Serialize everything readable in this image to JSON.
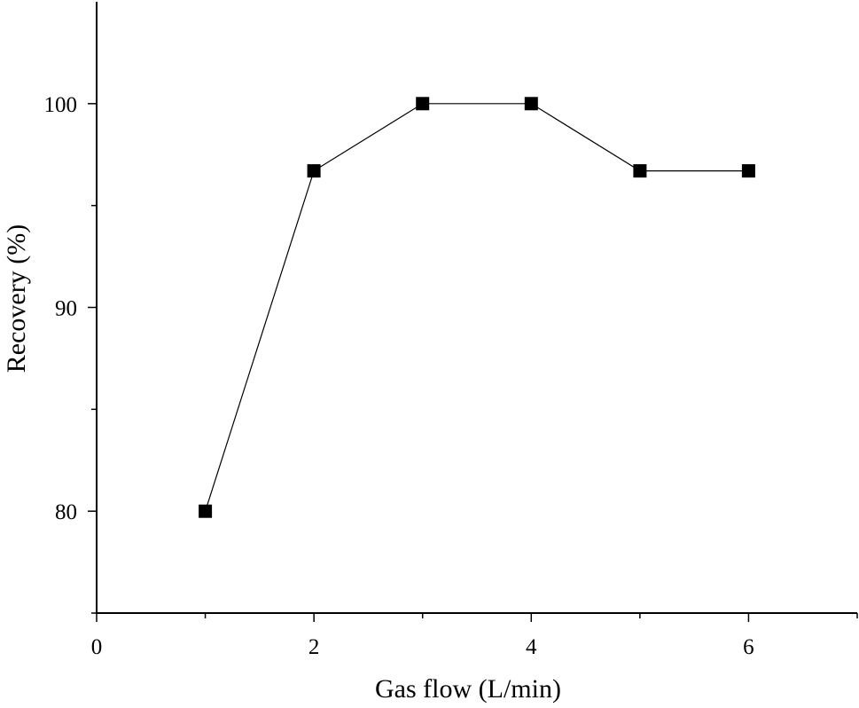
{
  "chart_data": {
    "type": "line",
    "title": "",
    "xlabel": "Gas flow (L/min)",
    "ylabel": "Recovery (%)",
    "xlim": [
      0,
      7
    ],
    "ylim": [
      75,
      105
    ],
    "xticks": [
      0,
      2,
      4,
      6
    ],
    "yticks": [
      80,
      90,
      100
    ],
    "x_minor_ticks": [
      1,
      3,
      5,
      7
    ],
    "y_minor_ticks": [
      75,
      85,
      95
    ],
    "grid": false,
    "marker": "square",
    "color": "#000000",
    "series": [
      {
        "x": [
          1,
          2,
          3,
          4,
          5,
          6
        ],
        "values": [
          80.0,
          96.7,
          100.0,
          100.0,
          96.7,
          96.7
        ]
      }
    ]
  }
}
